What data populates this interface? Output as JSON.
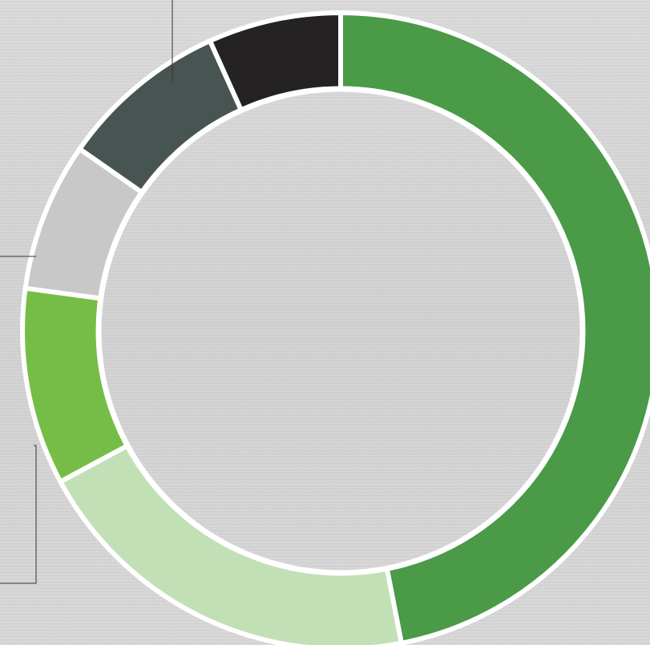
{
  "chart_data": {
    "type": "pie",
    "variant": "donut",
    "start_angle_deg": 0,
    "direction": "clockwise",
    "slices": [
      {
        "value": 46.0,
        "color": "#4a9a48"
      },
      {
        "value": 19.8,
        "color": "#c2e0b6"
      },
      {
        "value": 9.8,
        "color": "#76bd47"
      },
      {
        "value": 7.4,
        "color": "#c8c8c8"
      },
      {
        "value": 8.4,
        "color": "#485452"
      },
      {
        "value": 6.6,
        "color": "#252223"
      }
    ],
    "separator_color": "#ffffff",
    "leader_line_color": "#333333"
  }
}
